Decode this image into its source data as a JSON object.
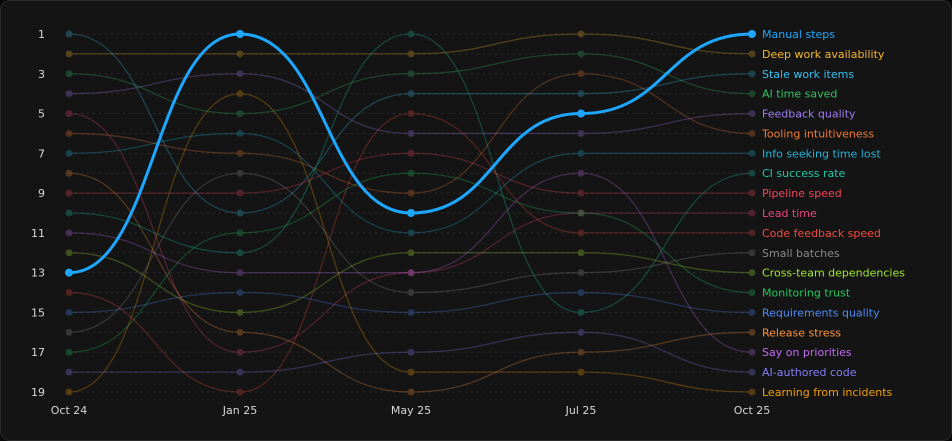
{
  "chart_data": {
    "type": "line",
    "subtype": "bump",
    "x": [
      "Oct 24",
      "Jan 25",
      "May 25",
      "Jul 25",
      "Oct 25"
    ],
    "yticks": [
      "1",
      "3",
      "5",
      "7",
      "9",
      "11",
      "13",
      "15",
      "17",
      "19"
    ],
    "ylim": [
      1,
      19
    ],
    "y_reversed": true,
    "grid": true,
    "legend_position": "right",
    "highlighted_series": "Manual steps",
    "series": [
      {
        "name": "Manual steps",
        "color": "#1ea7ff",
        "values": [
          13,
          1,
          10,
          5,
          1
        ]
      },
      {
        "name": "Deep work availability",
        "color": "#f5b731",
        "values": [
          2,
          2,
          2,
          1,
          2
        ]
      },
      {
        "name": "Stale work items",
        "color": "#39c0ee",
        "values": [
          1,
          10,
          4,
          4,
          3
        ]
      },
      {
        "name": "AI time saved",
        "color": "#34c266",
        "values": [
          3,
          5,
          3,
          2,
          4
        ]
      },
      {
        "name": "Feedback quality",
        "color": "#a27cf6",
        "values": [
          4,
          3,
          6,
          6,
          5
        ]
      },
      {
        "name": "Tooling intuitiveness",
        "color": "#f07b38",
        "values": [
          6,
          7,
          9,
          3,
          6
        ]
      },
      {
        "name": "Info seeking time lost",
        "color": "#22b3d8",
        "values": [
          7,
          6,
          11,
          7,
          7
        ]
      },
      {
        "name": "CI success rate",
        "color": "#1ec9a6",
        "values": [
          10,
          12,
          1,
          15,
          8
        ]
      },
      {
        "name": "Pipeline speed",
        "color": "#f0465b",
        "values": [
          9,
          9,
          7,
          9,
          9
        ]
      },
      {
        "name": "Lead time",
        "color": "#e8457f",
        "values": [
          5,
          17,
          13,
          10,
          10
        ]
      },
      {
        "name": "Code feedback speed",
        "color": "#f04a41",
        "values": [
          14,
          19,
          5,
          11,
          11
        ]
      },
      {
        "name": "Small batches",
        "color": "#8a8a8a",
        "values": [
          16,
          8,
          14,
          13,
          12
        ]
      },
      {
        "name": "Cross-team dependencies",
        "color": "#a3e635",
        "values": [
          12,
          15,
          12,
          12,
          13
        ]
      },
      {
        "name": "Monitoring trust",
        "color": "#22c55e",
        "values": [
          17,
          11,
          8,
          10,
          14
        ]
      },
      {
        "name": "Requirements quality",
        "color": "#4f8bf5",
        "values": [
          15,
          14,
          15,
          14,
          15
        ]
      },
      {
        "name": "Release stress",
        "color": "#fb923c",
        "values": [
          8,
          16,
          19,
          17,
          16
        ]
      },
      {
        "name": "Say on priorities",
        "color": "#c06cf0",
        "values": [
          11,
          13,
          13,
          8,
          17
        ]
      },
      {
        "name": "AI-authored code",
        "color": "#8b7cf6",
        "values": [
          18,
          18,
          17,
          16,
          18
        ]
      },
      {
        "name": "Learning from incidents",
        "color": "#f59e0b",
        "values": [
          19,
          4,
          18,
          18,
          19
        ]
      }
    ]
  }
}
